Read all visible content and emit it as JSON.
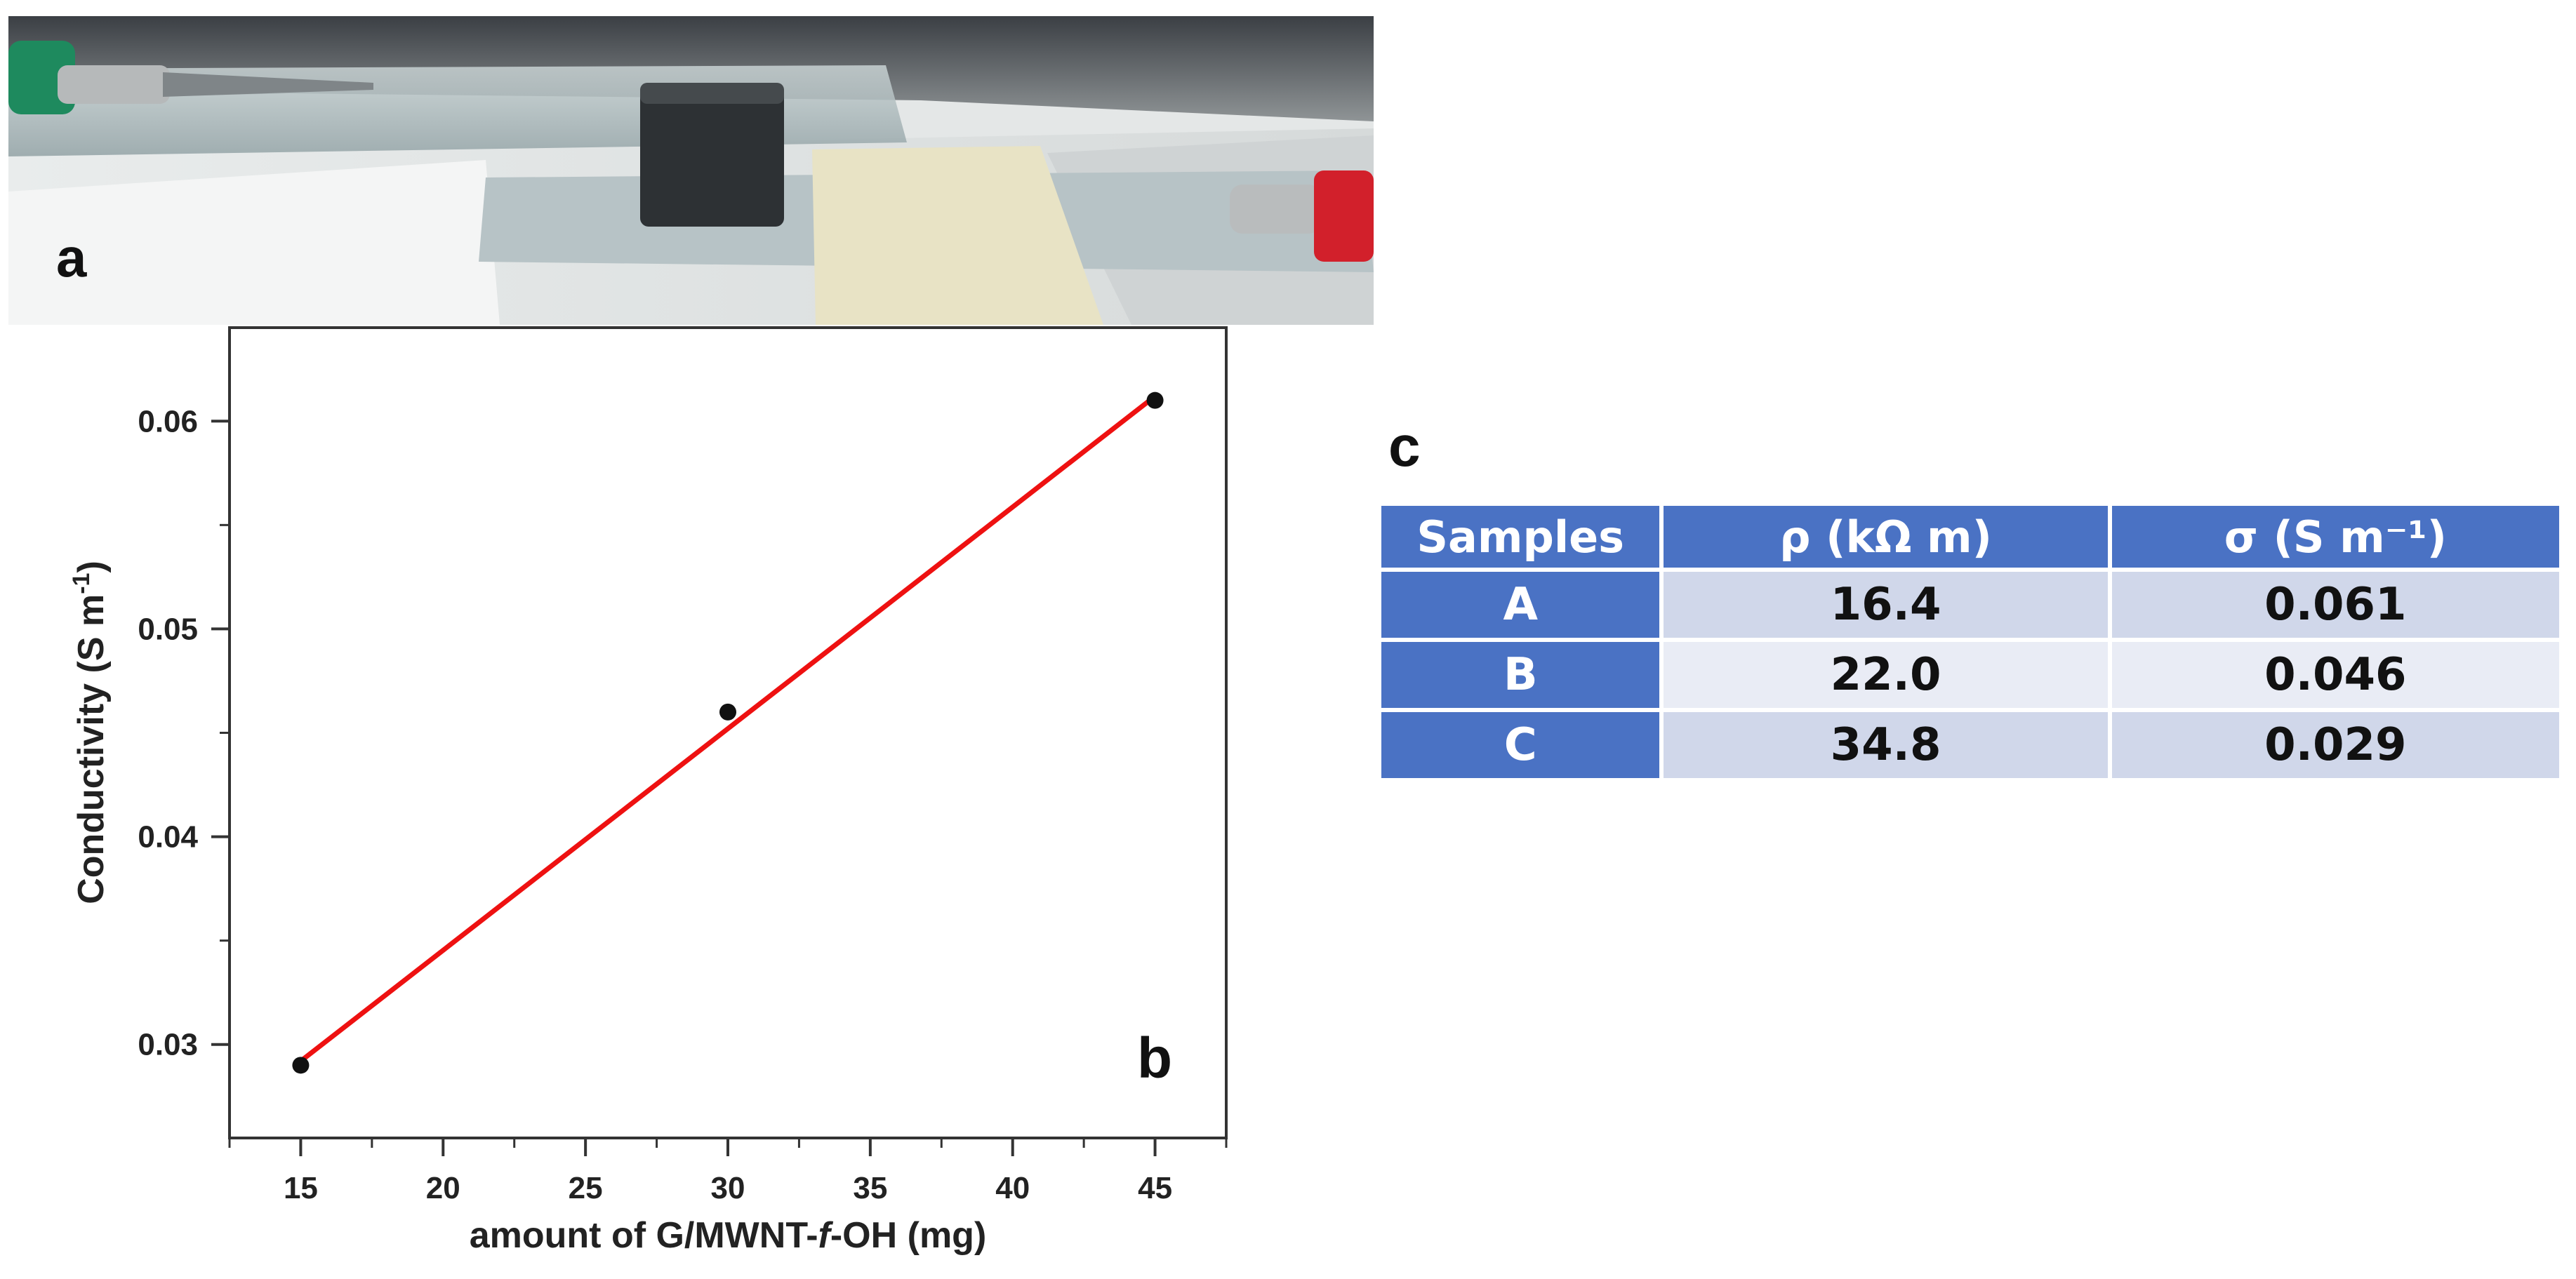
{
  "panels": {
    "a": "a",
    "b": "b",
    "c": "c"
  },
  "colors": {
    "fit_line": "#ee1111",
    "points": "#111111",
    "table_header": "#4a72c4",
    "row_odd": "#d0d7ea",
    "row_even": "#e9ecf5"
  },
  "chart_data": {
    "type": "scatter",
    "xlabel": "amount of G/MWNT-f-OH (mg)",
    "xlabel_parts": [
      "amount of G/MWNT-",
      "f",
      "-OH (mg)"
    ],
    "ylabel": "Conductivity (S m-1)",
    "ylabel_parts": [
      "Conductivity (S m",
      "-1",
      ")"
    ],
    "xlim": [
      12.5,
      47.5
    ],
    "ylim": [
      0.0255,
      0.0645
    ],
    "xticks": [
      15,
      20,
      25,
      30,
      35,
      40,
      45
    ],
    "yticks": [
      0.03,
      0.04,
      0.05,
      0.06
    ],
    "ytick_labels": [
      "0.03",
      "0.04",
      "0.05",
      "0.06"
    ],
    "points": {
      "x": [
        15,
        30,
        45
      ],
      "y": [
        0.029,
        0.046,
        0.061
      ]
    },
    "fit_line": {
      "x": [
        15,
        45
      ],
      "y": [
        0.0292,
        0.0612
      ]
    },
    "grid": false,
    "legend": "none"
  },
  "table": {
    "headers": [
      "Samples",
      "ρ   (kΩ m)",
      "σ   (S m⁻¹)"
    ],
    "rows": [
      [
        "A",
        "16.4",
        "0.061"
      ],
      [
        "B",
        "22.0",
        "0.046"
      ],
      [
        "C",
        "34.8",
        "0.029"
      ]
    ]
  }
}
